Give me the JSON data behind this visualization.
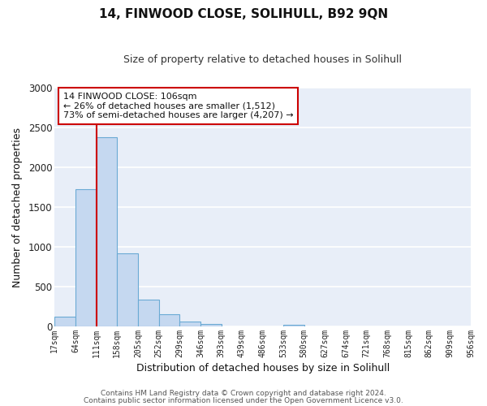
{
  "title": "14, FINWOOD CLOSE, SOLIHULL, B92 9QN",
  "subtitle": "Size of property relative to detached houses in Solihull",
  "xlabel": "Distribution of detached houses by size in Solihull",
  "ylabel": "Number of detached properties",
  "bin_edges": [
    17,
    64,
    111,
    158,
    205,
    252,
    299,
    346,
    393,
    439,
    486,
    533,
    580,
    627,
    674,
    721,
    768,
    815,
    862,
    909,
    956
  ],
  "bar_heights": [
    120,
    1720,
    2380,
    920,
    335,
    155,
    60,
    30,
    0,
    0,
    0,
    25,
    0,
    0,
    0,
    0,
    0,
    0,
    0,
    0
  ],
  "bar_color": "#c5d8f0",
  "bar_edge_color": "#6aaad4",
  "vline_x": 111,
  "vline_color": "#cc0000",
  "annotation_title": "14 FINWOOD CLOSE: 106sqm",
  "annotation_line1": "← 26% of detached houses are smaller (1,512)",
  "annotation_line2": "73% of semi-detached houses are larger (4,207) →",
  "annotation_box_facecolor": "#ffffff",
  "annotation_box_edgecolor": "#cc0000",
  "ylim": [
    0,
    3000
  ],
  "yticks": [
    0,
    500,
    1000,
    1500,
    2000,
    2500,
    3000
  ],
  "tick_labels": [
    "17sqm",
    "64sqm",
    "111sqm",
    "158sqm",
    "205sqm",
    "252sqm",
    "299sqm",
    "346sqm",
    "393sqm",
    "439sqm",
    "486sqm",
    "533sqm",
    "580sqm",
    "627sqm",
    "674sqm",
    "721sqm",
    "768sqm",
    "815sqm",
    "862sqm",
    "909sqm",
    "956sqm"
  ],
  "footer1": "Contains HM Land Registry data © Crown copyright and database right 2024.",
  "footer2": "Contains public sector information licensed under the Open Government Licence v3.0.",
  "fig_facecolor": "#ffffff",
  "ax_facecolor": "#e8eef8",
  "grid_color": "#ffffff",
  "title_fontsize": 11,
  "subtitle_fontsize": 9
}
